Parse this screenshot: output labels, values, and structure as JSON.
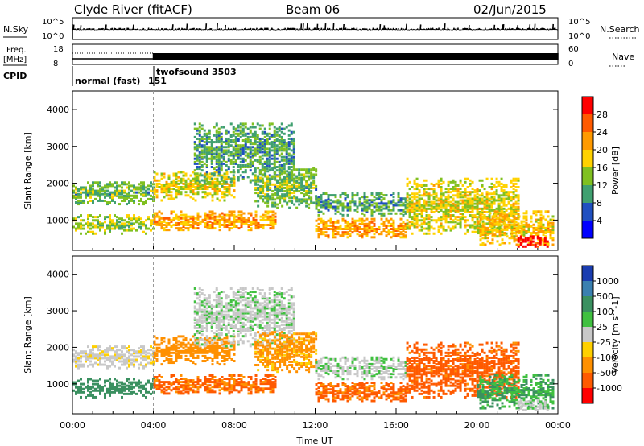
{
  "header": {
    "station": "Clyde River (fitACF)",
    "beam": "Beam 06",
    "date": "02/Jun/2015"
  },
  "top_panels": {
    "nsky_label": "N.Sky",
    "nsky_ticks": [
      "10^5",
      "10^0"
    ],
    "nsearch_label": "N.Search",
    "nsearch_ticks": [
      "10^5",
      "10^0"
    ],
    "freq_label_line1": "Freq.",
    "freq_label_line2": "[MHz]",
    "freq_ticks": [
      "18",
      "8"
    ],
    "nave_label": "Nave",
    "nave_ticks": [
      "60",
      "0"
    ],
    "cpid_label": "CPID",
    "cpid_modes": [
      {
        "text": "normal (fast)",
        "start_hour": 0
      },
      {
        "text": "151",
        "start_hour": 3.95
      },
      {
        "text": "twofsound",
        "start_hour": 4.0
      },
      {
        "text": "3503",
        "start_hour": 4.0
      }
    ]
  },
  "power_colorbar": {
    "label": "Power [dB]",
    "ticks": [
      "28",
      "24",
      "20",
      "16",
      "12",
      "8",
      "4"
    ],
    "colors": [
      "#ff0000",
      "#ff5a00",
      "#ff9a00",
      "#ffd200",
      "#80c020",
      "#40a070",
      "#2050c0",
      "#0000ff"
    ]
  },
  "velocity_colorbar": {
    "label": "Velocity [m s^-1]",
    "ticks": [
      "1000",
      "500",
      "100",
      "25",
      "-25",
      "-100",
      "-500",
      "-1000"
    ],
    "colors": [
      "#1a3db0",
      "#3a80b0",
      "#3a9060",
      "#40c040",
      "#c8c8c8",
      "#ffd000",
      "#ff9000",
      "#ff5a00",
      "#ff0000"
    ]
  },
  "chart_data": {
    "type": "heatmap",
    "title": "Clyde River (fitACF)  Beam 06  02/Jun/2015",
    "xlabel": "Time UT",
    "ylabel": "Slant Range [km]",
    "x_ticks": [
      "00:00",
      "04:00",
      "08:00",
      "12:00",
      "16:00",
      "20:00",
      "00:00"
    ],
    "xlim_hours": [
      0,
      24
    ],
    "y_ticks": [
      "1000",
      "2000",
      "3000",
      "4000"
    ],
    "ylim_km": [
      180,
      4500
    ],
    "panels": [
      {
        "name": "Power",
        "unit": "dB",
        "range": [
          0,
          30
        ]
      },
      {
        "name": "Velocity",
        "unit": "m s^-1",
        "range": [
          -1000,
          1000
        ]
      }
    ],
    "scatter_bands": [
      {
        "t0": 0.0,
        "t1": 4.0,
        "r0": 1400,
        "r1": 2000,
        "p": 12,
        "v": -10
      },
      {
        "t0": 0.0,
        "t1": 4.0,
        "r0": 600,
        "r1": 1100,
        "p": 14,
        "v": 150
      },
      {
        "t0": 4.0,
        "t1": 8.0,
        "r0": 1500,
        "r1": 2300,
        "p": 16,
        "v": -120
      },
      {
        "t0": 4.0,
        "t1": 10.0,
        "r0": 700,
        "r1": 1200,
        "p": 20,
        "v": -350
      },
      {
        "t0": 6.0,
        "t1": 11.0,
        "r0": 2000,
        "r1": 3600,
        "p": 10,
        "v": 10
      },
      {
        "t0": 9.0,
        "t1": 12.0,
        "r0": 1300,
        "r1": 2400,
        "p": 12,
        "v": -80
      },
      {
        "t0": 12.0,
        "t1": 16.5,
        "r0": 500,
        "r1": 1000,
        "p": 20,
        "v": -400
      },
      {
        "t0": 12.0,
        "t1": 16.5,
        "r0": 1100,
        "r1": 1700,
        "p": 10,
        "v": 15
      },
      {
        "t0": 16.5,
        "t1": 22.0,
        "r0": 600,
        "r1": 2100,
        "p": 16,
        "v": -450
      },
      {
        "t0": 20.0,
        "t1": 23.8,
        "r0": 300,
        "r1": 1200,
        "p": 18,
        "v": 60
      },
      {
        "t0": 22.0,
        "t1": 23.5,
        "r0": 250,
        "r1": 550,
        "p": 28,
        "v": 5
      }
    ]
  }
}
